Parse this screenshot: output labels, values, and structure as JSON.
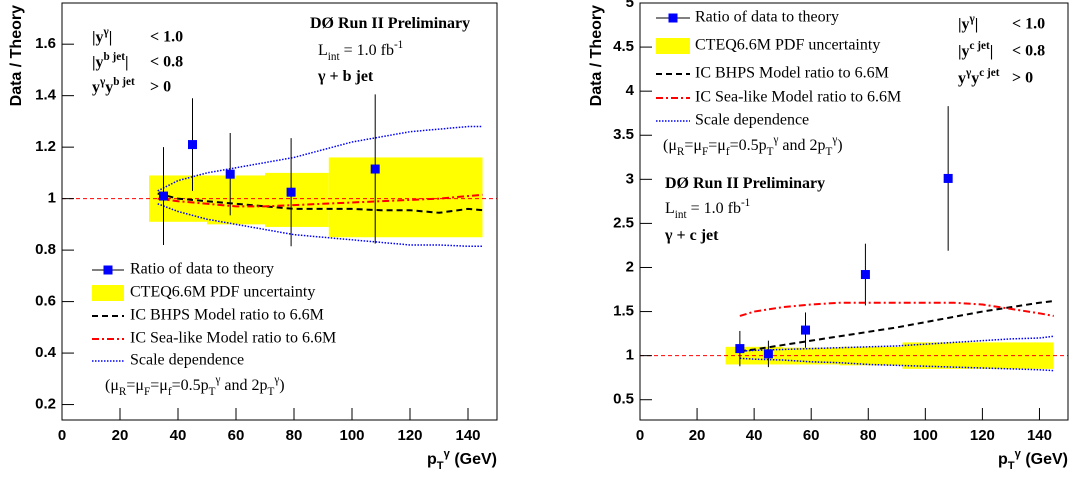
{
  "chart_data": [
    {
      "type": "scatter",
      "ylabel": "Data / Theory",
      "xlabel": [
        {
          "text": "p"
        },
        {
          "text": "T",
          "pos": "sub"
        },
        {
          "text": "γ",
          "pos": "sup"
        },
        {
          "text": " (GeV)"
        }
      ],
      "xlim": [
        0,
        150
      ],
      "ylim": [
        0.14,
        1.76
      ],
      "xticks": [
        0,
        20,
        40,
        60,
        80,
        100,
        120,
        140
      ],
      "yticks": [
        0.2,
        0.4,
        0.6,
        0.8,
        1,
        1.2,
        1.4,
        1.6
      ],
      "refline": 1,
      "refcolor": "#ff0000",
      "points": {
        "name": "Ratio of data to theory",
        "color": "#0000ff",
        "x": [
          35,
          45,
          58,
          79,
          108
        ],
        "values": [
          1.01,
          1.21,
          1.095,
          1.025,
          1.115
        ],
        "errors": [
          0.19,
          0.18,
          0.16,
          0.21,
          0.29
        ]
      },
      "band": {
        "name": "CTEQ6.6M PDF uncertainty",
        "color": "#ffff00",
        "edges": [
          30,
          50,
          70,
          92,
          145
        ],
        "lower": [
          0.91,
          0.9,
          0.89,
          0.85
        ],
        "upper": [
          1.09,
          1.09,
          1.1,
          1.16
        ]
      },
      "lines": [
        {
          "name": "IC BHPS Model ratio to 6.6M",
          "color": "#000000",
          "style": "dashed",
          "x": [
            33,
            40,
            50,
            60,
            70,
            80,
            90,
            100,
            110,
            120,
            130,
            140,
            145
          ],
          "values": [
            1.02,
            1.0,
            0.99,
            0.98,
            0.97,
            0.96,
            0.96,
            0.96,
            0.955,
            0.955,
            0.945,
            0.96,
            0.955
          ]
        },
        {
          "name": "IC Sea-like Model ratio to 6.6M",
          "color": "#ff0000",
          "style": "dashdot",
          "x": [
            33,
            40,
            50,
            60,
            70,
            80,
            90,
            100,
            110,
            120,
            130,
            140,
            145
          ],
          "values": [
            1.0,
            0.99,
            0.98,
            0.97,
            0.97,
            0.975,
            0.98,
            0.985,
            0.99,
            0.995,
            1.0,
            1.01,
            1.015
          ]
        }
      ],
      "scale": {
        "name": "Scale dependence",
        "color": "#0000ff",
        "x": [
          33,
          40,
          50,
          60,
          70,
          80,
          90,
          100,
          110,
          120,
          130,
          140,
          145
        ],
        "upper": [
          1.03,
          1.07,
          1.1,
          1.12,
          1.14,
          1.16,
          1.19,
          1.22,
          1.24,
          1.26,
          1.27,
          1.28,
          1.28
        ],
        "lower": [
          0.98,
          0.95,
          0.92,
          0.9,
          0.88,
          0.86,
          0.85,
          0.84,
          0.83,
          0.82,
          0.82,
          0.815,
          0.815
        ]
      },
      "note": [
        {
          "text": "(μ"
        },
        {
          "text": "R",
          "pos": "sub"
        },
        {
          "text": "=μ"
        },
        {
          "text": "F",
          "pos": "sub"
        },
        {
          "text": "=μ"
        },
        {
          "text": "f",
          "pos": "sub"
        },
        {
          "text": "=0.5p"
        },
        {
          "text": "T",
          "pos": "sub"
        },
        {
          "text": "γ",
          "pos": "sup"
        },
        {
          "text": " and 2p"
        },
        {
          "text": "T",
          "pos": "sub"
        },
        {
          "text": "γ",
          "pos": "sup"
        },
        {
          "text": ")"
        }
      ],
      "annotations": [
        [
          {
            "text": "DØ Run II Preliminary"
          }
        ],
        [
          {
            "text": "L"
          },
          {
            "text": "int",
            "pos": "sub"
          },
          {
            "text": " = 1.0 fb"
          },
          {
            "text": "-1",
            "pos": "sup"
          }
        ],
        [
          {
            "text": "γ + b jet"
          }
        ]
      ],
      "cuts": [
        {
          "label": [
            {
              "text": "|y"
            },
            {
              "text": "γ",
              "pos": "sup"
            },
            {
              "text": "|"
            }
          ],
          "value": "< 1.0"
        },
        {
          "label": [
            {
              "text": "|y"
            },
            {
              "text": "b jet",
              "pos": "sup"
            },
            {
              "text": "|"
            }
          ],
          "value": "< 0.8"
        },
        {
          "label": [
            {
              "text": "y"
            },
            {
              "text": "γ",
              "pos": "sup"
            },
            {
              "text": "y"
            },
            {
              "text": "b jet",
              "pos": "sup"
            }
          ],
          "value": "> 0"
        }
      ]
    },
    {
      "type": "scatter",
      "ylabel": "Data / Theory",
      "xlabel": [
        {
          "text": "p"
        },
        {
          "text": "T",
          "pos": "sub"
        },
        {
          "text": "γ",
          "pos": "sup"
        },
        {
          "text": " (GeV)"
        }
      ],
      "xlim": [
        0,
        150
      ],
      "ylim": [
        0.27,
        5
      ],
      "xticks": [
        0,
        20,
        40,
        60,
        80,
        100,
        120,
        140
      ],
      "yticks": [
        0.5,
        1,
        1.5,
        2,
        2.5,
        3,
        3.5,
        4,
        4.5,
        5
      ],
      "refline": 1,
      "refcolor": "#ff0000",
      "points": {
        "name": "Ratio of data to theory",
        "color": "#0000ff",
        "x": [
          35,
          45,
          58,
          79,
          108
        ],
        "values": [
          1.08,
          1.02,
          1.29,
          1.92,
          3.01
        ],
        "errors": [
          0.2,
          0.15,
          0.2,
          0.35,
          0.82
        ]
      },
      "band": {
        "name": "CTEQ6.6M PDF uncertainty",
        "color": "#ffff00",
        "edges": [
          30,
          50,
          70,
          92,
          145
        ],
        "lower": [
          0.9,
          0.9,
          0.89,
          0.85
        ],
        "upper": [
          1.1,
          1.09,
          1.1,
          1.15
        ]
      },
      "lines": [
        {
          "name": "IC BHPS Model ratio to 6.6M",
          "color": "#000000",
          "style": "dashed",
          "x": [
            35,
            40,
            50,
            60,
            70,
            80,
            90,
            100,
            110,
            120,
            130,
            140,
            145
          ],
          "values": [
            1.05,
            1.07,
            1.12,
            1.17,
            1.22,
            1.27,
            1.32,
            1.38,
            1.44,
            1.5,
            1.55,
            1.6,
            1.62
          ]
        },
        {
          "name": "IC Sea-like Model ratio to 6.6M",
          "color": "#ff0000",
          "style": "dashdot",
          "x": [
            35,
            40,
            50,
            60,
            70,
            80,
            90,
            100,
            110,
            120,
            130,
            140,
            145
          ],
          "values": [
            1.45,
            1.5,
            1.55,
            1.58,
            1.6,
            1.6,
            1.6,
            1.6,
            1.6,
            1.58,
            1.53,
            1.48,
            1.45
          ]
        }
      ],
      "scale": {
        "name": "Scale dependence",
        "color": "#0000ff",
        "x": [
          35,
          40,
          50,
          60,
          70,
          80,
          90,
          100,
          110,
          120,
          130,
          140,
          145
        ],
        "upper": [
          1.05,
          1.06,
          1.07,
          1.08,
          1.09,
          1.1,
          1.11,
          1.13,
          1.15,
          1.17,
          1.19,
          1.2,
          1.22
        ],
        "lower": [
          0.97,
          0.96,
          0.95,
          0.93,
          0.92,
          0.9,
          0.89,
          0.88,
          0.87,
          0.86,
          0.85,
          0.84,
          0.83
        ]
      },
      "note": [
        {
          "text": "(μ"
        },
        {
          "text": "R",
          "pos": "sub"
        },
        {
          "text": "=μ"
        },
        {
          "text": "F",
          "pos": "sub"
        },
        {
          "text": "=μ"
        },
        {
          "text": "f",
          "pos": "sub"
        },
        {
          "text": "=0.5p"
        },
        {
          "text": "T",
          "pos": "sub"
        },
        {
          "text": "γ",
          "pos": "sup"
        },
        {
          "text": " and 2p"
        },
        {
          "text": "T",
          "pos": "sub"
        },
        {
          "text": "γ",
          "pos": "sup"
        },
        {
          "text": ")"
        }
      ],
      "annotations": [
        [
          {
            "text": "DØ Run II Preliminary"
          }
        ],
        [
          {
            "text": "L"
          },
          {
            "text": "int",
            "pos": "sub"
          },
          {
            "text": " = 1.0 fb"
          },
          {
            "text": "-1",
            "pos": "sup"
          }
        ],
        [
          {
            "text": "γ + c jet"
          }
        ]
      ],
      "cuts": [
        {
          "label": [
            {
              "text": "|y"
            },
            {
              "text": "γ",
              "pos": "sup"
            },
            {
              "text": "|"
            }
          ],
          "value": "< 1.0"
        },
        {
          "label": [
            {
              "text": "|y"
            },
            {
              "text": "c jet",
              "pos": "sup"
            },
            {
              "text": "|"
            }
          ],
          "value": "< 0.8"
        },
        {
          "label": [
            {
              "text": "y"
            },
            {
              "text": "γ",
              "pos": "sup"
            },
            {
              "text": "y"
            },
            {
              "text": "c jet",
              "pos": "sup"
            }
          ],
          "value": "> 0"
        }
      ]
    }
  ]
}
